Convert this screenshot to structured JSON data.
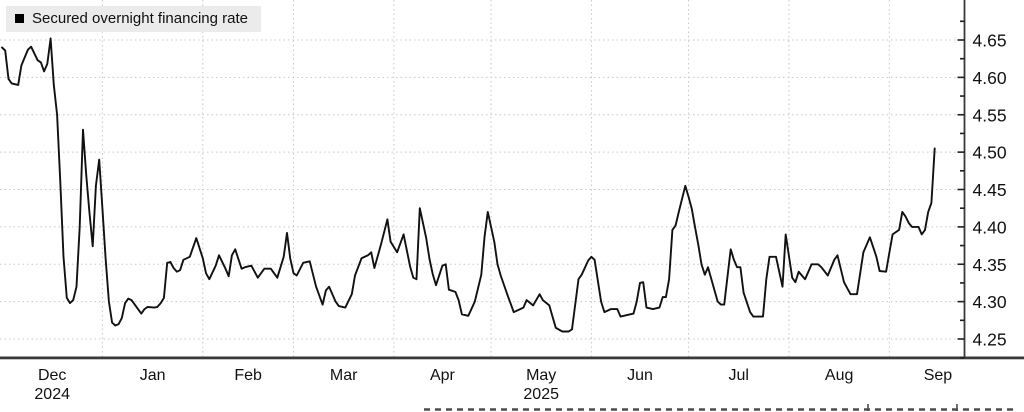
{
  "chart_data": {
    "type": "line",
    "title": "Secured overnight financing rate",
    "xlabel": "",
    "ylabel": "",
    "grid": true,
    "legend_position": "top-left",
    "axis_side": "right",
    "ylim": [
      4.225,
      4.7
    ],
    "x_axis": {
      "start_date": "2024-12-01",
      "unit": "days_since_start_date",
      "ticks": [
        {
          "label": "Dec",
          "sublabel": "2024",
          "day": 15.5
        },
        {
          "label": "Jan",
          "day": 46.5
        },
        {
          "label": "Feb",
          "day": 76
        },
        {
          "label": "Mar",
          "day": 105.5
        },
        {
          "label": "Apr",
          "day": 136
        },
        {
          "label": "May",
          "sublabel": "2025",
          "day": 166.5
        },
        {
          "label": "Jun",
          "day": 197
        },
        {
          "label": "Jul",
          "day": 227.5
        },
        {
          "label": "Aug",
          "day": 258.5
        },
        {
          "label": "Sep",
          "day": 289
        }
      ],
      "gridline_days": [
        31,
        62,
        90,
        121,
        151,
        182,
        212,
        243,
        274
      ]
    },
    "y_axis": {
      "major_ticks": [
        4.25,
        4.3,
        4.35,
        4.4,
        4.45,
        4.5,
        4.55,
        4.6,
        4.65
      ],
      "minor_step": 0.025,
      "minor_range": [
        4.225,
        4.675
      ],
      "label_format_decimals": 2
    },
    "legend": [
      {
        "label": "Secured overnight financing rate",
        "color": "#000000",
        "marker": "square"
      }
    ],
    "series": [
      {
        "name": "Secured overnight financing rate",
        "color": "#111111",
        "points": [
          [
            0,
            4.64
          ],
          [
            1,
            4.636
          ],
          [
            2,
            4.598
          ],
          [
            3,
            4.592
          ],
          [
            5,
            4.59
          ],
          [
            6,
            4.616
          ],
          [
            8,
            4.637
          ],
          [
            9,
            4.641
          ],
          [
            11,
            4.623
          ],
          [
            12,
            4.62
          ],
          [
            13,
            4.608
          ],
          [
            14,
            4.618
          ],
          [
            15,
            4.652
          ],
          [
            16,
            4.59
          ],
          [
            17,
            4.55
          ],
          [
            18,
            4.46
          ],
          [
            19,
            4.36
          ],
          [
            20,
            4.305
          ],
          [
            21,
            4.298
          ],
          [
            22,
            4.302
          ],
          [
            23,
            4.32
          ],
          [
            24,
            4.4
          ],
          [
            25,
            4.53
          ],
          [
            26,
            4.47
          ],
          [
            27,
            4.42
          ],
          [
            28,
            4.374
          ],
          [
            29,
            4.455
          ],
          [
            30,
            4.49
          ],
          [
            31,
            4.425
          ],
          [
            32,
            4.358
          ],
          [
            33,
            4.3
          ],
          [
            34,
            4.272
          ],
          [
            35,
            4.268
          ],
          [
            36,
            4.27
          ],
          [
            37,
            4.278
          ],
          [
            38,
            4.298
          ],
          [
            39,
            4.304
          ],
          [
            40,
            4.302
          ],
          [
            42,
            4.29
          ],
          [
            43,
            4.284
          ],
          [
            44,
            4.29
          ],
          [
            45,
            4.293
          ],
          [
            47,
            4.292
          ],
          [
            48,
            4.293
          ],
          [
            49,
            4.298
          ],
          [
            50,
            4.305
          ],
          [
            51,
            4.352
          ],
          [
            52,
            4.353
          ],
          [
            53,
            4.345
          ],
          [
            54,
            4.34
          ],
          [
            55,
            4.342
          ],
          [
            56,
            4.356
          ],
          [
            58,
            4.36
          ],
          [
            60,
            4.385
          ],
          [
            62,
            4.358
          ],
          [
            63,
            4.338
          ],
          [
            64,
            4.33
          ],
          [
            66,
            4.348
          ],
          [
            67,
            4.362
          ],
          [
            69,
            4.344
          ],
          [
            70,
            4.334
          ],
          [
            71,
            4.362
          ],
          [
            72,
            4.37
          ],
          [
            74,
            4.344
          ],
          [
            75,
            4.346
          ],
          [
            77,
            4.348
          ],
          [
            79,
            4.332
          ],
          [
            81,
            4.344
          ],
          [
            83,
            4.344
          ],
          [
            85,
            4.332
          ],
          [
            87,
            4.36
          ],
          [
            88,
            4.392
          ],
          [
            89,
            4.358
          ],
          [
            90,
            4.338
          ],
          [
            91,
            4.335
          ],
          [
            93,
            4.352
          ],
          [
            95,
            4.354
          ],
          [
            97,
            4.32
          ],
          [
            99,
            4.296
          ],
          [
            100,
            4.315
          ],
          [
            101,
            4.32
          ],
          [
            103,
            4.3
          ],
          [
            104,
            4.294
          ],
          [
            106,
            4.292
          ],
          [
            108,
            4.31
          ],
          [
            109,
            4.335
          ],
          [
            111,
            4.358
          ],
          [
            113,
            4.362
          ],
          [
            114,
            4.366
          ],
          [
            115,
            4.345
          ],
          [
            117,
            4.376
          ],
          [
            119,
            4.41
          ],
          [
            120,
            4.38
          ],
          [
            122,
            4.366
          ],
          [
            124,
            4.39
          ],
          [
            126,
            4.347
          ],
          [
            127,
            4.332
          ],
          [
            128,
            4.33
          ],
          [
            129,
            4.425
          ],
          [
            131,
            4.385
          ],
          [
            132,
            4.357
          ],
          [
            133,
            4.337
          ],
          [
            134,
            4.322
          ],
          [
            136,
            4.348
          ],
          [
            137,
            4.35
          ],
          [
            138,
            4.316
          ],
          [
            140,
            4.313
          ],
          [
            141,
            4.302
          ],
          [
            142,
            4.283
          ],
          [
            144,
            4.281
          ],
          [
            146,
            4.3
          ],
          [
            148,
            4.336
          ],
          [
            149,
            4.386
          ],
          [
            150,
            4.42
          ],
          [
            152,
            4.38
          ],
          [
            153,
            4.35
          ],
          [
            154,
            4.335
          ],
          [
            156,
            4.31
          ],
          [
            158,
            4.286
          ],
          [
            160,
            4.29
          ],
          [
            161,
            4.292
          ],
          [
            162,
            4.302
          ],
          [
            164,
            4.295
          ],
          [
            166,
            4.31
          ],
          [
            167,
            4.302
          ],
          [
            169,
            4.295
          ],
          [
            170,
            4.28
          ],
          [
            171,
            4.265
          ],
          [
            173,
            4.26
          ],
          [
            175,
            4.26
          ],
          [
            176,
            4.263
          ],
          [
            178,
            4.33
          ],
          [
            179,
            4.336
          ],
          [
            181,
            4.355
          ],
          [
            182,
            4.36
          ],
          [
            183,
            4.356
          ],
          [
            185,
            4.3
          ],
          [
            186,
            4.286
          ],
          [
            188,
            4.29
          ],
          [
            190,
            4.29
          ],
          [
            191,
            4.28
          ],
          [
            193,
            4.282
          ],
          [
            195,
            4.284
          ],
          [
            196,
            4.3
          ],
          [
            197,
            4.325
          ],
          [
            198,
            4.326
          ],
          [
            199,
            4.292
          ],
          [
            201,
            4.29
          ],
          [
            203,
            4.292
          ],
          [
            204,
            4.306
          ],
          [
            205,
            4.306
          ],
          [
            206,
            4.33
          ],
          [
            207,
            4.396
          ],
          [
            208,
            4.402
          ],
          [
            209,
            4.42
          ],
          [
            211,
            4.455
          ],
          [
            212,
            4.44
          ],
          [
            213,
            4.424
          ],
          [
            214,
            4.4
          ],
          [
            215,
            4.376
          ],
          [
            216,
            4.35
          ],
          [
            217,
            4.336
          ],
          [
            218,
            4.346
          ],
          [
            220,
            4.315
          ],
          [
            221,
            4.3
          ],
          [
            222,
            4.296
          ],
          [
            223,
            4.296
          ],
          [
            225,
            4.37
          ],
          [
            226,
            4.356
          ],
          [
            227,
            4.346
          ],
          [
            228,
            4.346
          ],
          [
            229,
            4.312
          ],
          [
            231,
            4.286
          ],
          [
            232,
            4.28
          ],
          [
            234,
            4.28
          ],
          [
            235,
            4.28
          ],
          [
            236,
            4.33
          ],
          [
            237,
            4.36
          ],
          [
            239,
            4.36
          ],
          [
            241,
            4.32
          ],
          [
            242,
            4.39
          ],
          [
            244,
            4.332
          ],
          [
            245,
            4.326
          ],
          [
            246,
            4.34
          ],
          [
            248,
            4.33
          ],
          [
            250,
            4.35
          ],
          [
            252,
            4.35
          ],
          [
            253,
            4.346
          ],
          [
            255,
            4.335
          ],
          [
            257,
            4.356
          ],
          [
            258,
            4.362
          ],
          [
            260,
            4.326
          ],
          [
            262,
            4.31
          ],
          [
            264,
            4.31
          ],
          [
            266,
            4.366
          ],
          [
            268,
            4.386
          ],
          [
            270,
            4.36
          ],
          [
            271,
            4.341
          ],
          [
            273,
            4.34
          ],
          [
            274,
            4.365
          ],
          [
            275,
            4.39
          ],
          [
            277,
            4.396
          ],
          [
            278,
            4.42
          ],
          [
            279,
            4.414
          ],
          [
            280,
            4.405
          ],
          [
            281,
            4.4
          ],
          [
            283,
            4.4
          ],
          [
            284,
            4.39
          ],
          [
            285,
            4.396
          ],
          [
            286,
            4.42
          ],
          [
            287,
            4.432
          ],
          [
            288,
            4.505
          ]
        ]
      }
    ]
  },
  "colors": {
    "background": "#ffffff",
    "grid": "#c8c8c8",
    "axis": "#3a3a3a",
    "tick": "#1f1f1f",
    "label": "#111111",
    "line": "#111111",
    "legend_bg": "#ebebeb",
    "footer_fragment": "#4d4d4d"
  }
}
